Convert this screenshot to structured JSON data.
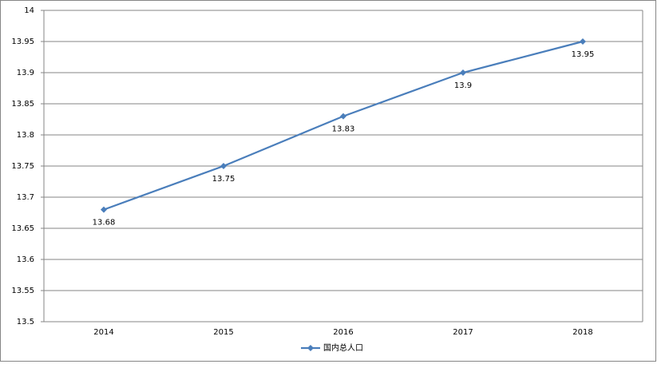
{
  "chart_data": {
    "type": "line",
    "categories": [
      "2014",
      "2015",
      "2016",
      "2017",
      "2018"
    ],
    "series": [
      {
        "name": "国内总人口",
        "color": "#4a7ebb",
        "values": [
          13.68,
          13.75,
          13.83,
          13.9,
          13.95
        ]
      }
    ],
    "ylim": [
      13.5,
      14
    ],
    "yticks": [
      13.5,
      13.55,
      13.6,
      13.65,
      13.7,
      13.75,
      13.8,
      13.85,
      13.9,
      13.95,
      14
    ],
    "grid": true,
    "legend": "bottom"
  }
}
